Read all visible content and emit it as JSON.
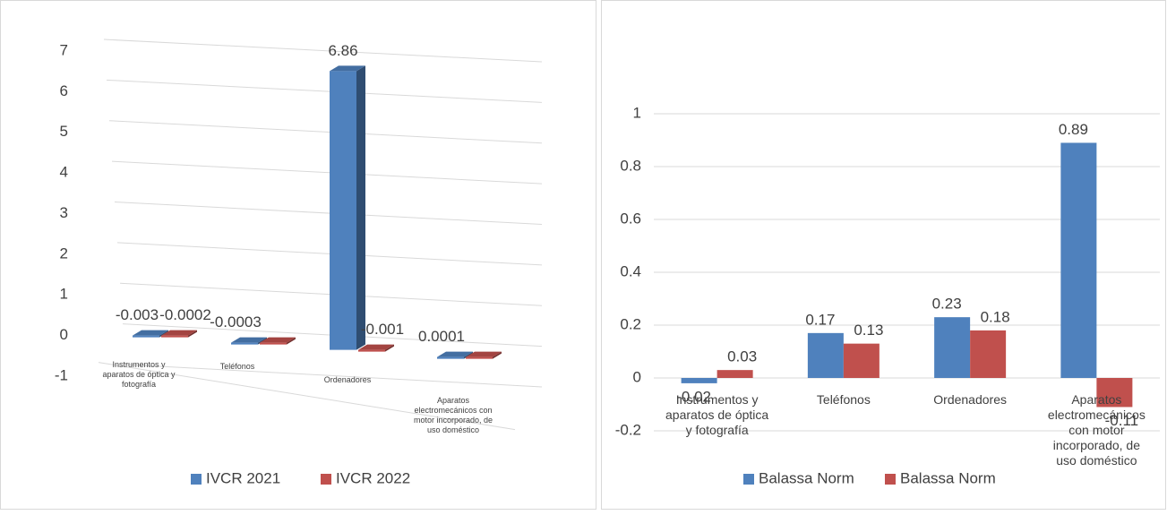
{
  "chart_data": [
    {
      "type": "bar3d",
      "categories": [
        "Instrumentos y aparatos de óptica y fotografía",
        "Teléfonos",
        "Ordenadores",
        "Aparatos electromecánicos con motor incorporado, de uso doméstico"
      ],
      "series": [
        {
          "name": "IVCR 2021",
          "color": "#4f81bd",
          "values": [
            -0.003,
            -0.0003,
            6.86,
            0.0001
          ],
          "value_labels": [
            "-0.003",
            "-0.0003",
            "6.86",
            "0.0001"
          ]
        },
        {
          "name": "IVCR 2022",
          "color": "#c0504d",
          "values": [
            -0.0002,
            -0.0003,
            -0.001,
            0.0001
          ],
          "value_labels": [
            "-0.0002",
            null,
            "-0.001",
            null
          ]
        }
      ],
      "ylim": [
        -1,
        7
      ],
      "yticks": [
        -1,
        0,
        1,
        2,
        3,
        4,
        5,
        6,
        7
      ],
      "grid": true,
      "legend": "bottom"
    },
    {
      "type": "bar",
      "categories": [
        "Instrumentos y aparatos de óptica y fotografía",
        "Teléfonos",
        "Ordenadores",
        "Aparatos electromecánicos con motor incorporado, de uso doméstico"
      ],
      "series": [
        {
          "name": "Balassa Norm",
          "color": "#4f81bd",
          "values": [
            -0.02,
            0.17,
            0.23,
            0.89
          ]
        },
        {
          "name": "Balassa Norm",
          "color": "#c0504d",
          "values": [
            0.03,
            0.13,
            0.18,
            -0.11
          ]
        }
      ],
      "ylim": [
        -0.2,
        1.2
      ],
      "yticks": [
        -0.2,
        0,
        0.2,
        0.4,
        0.6,
        0.8,
        1
      ],
      "grid": true,
      "legend": "bottom"
    }
  ]
}
